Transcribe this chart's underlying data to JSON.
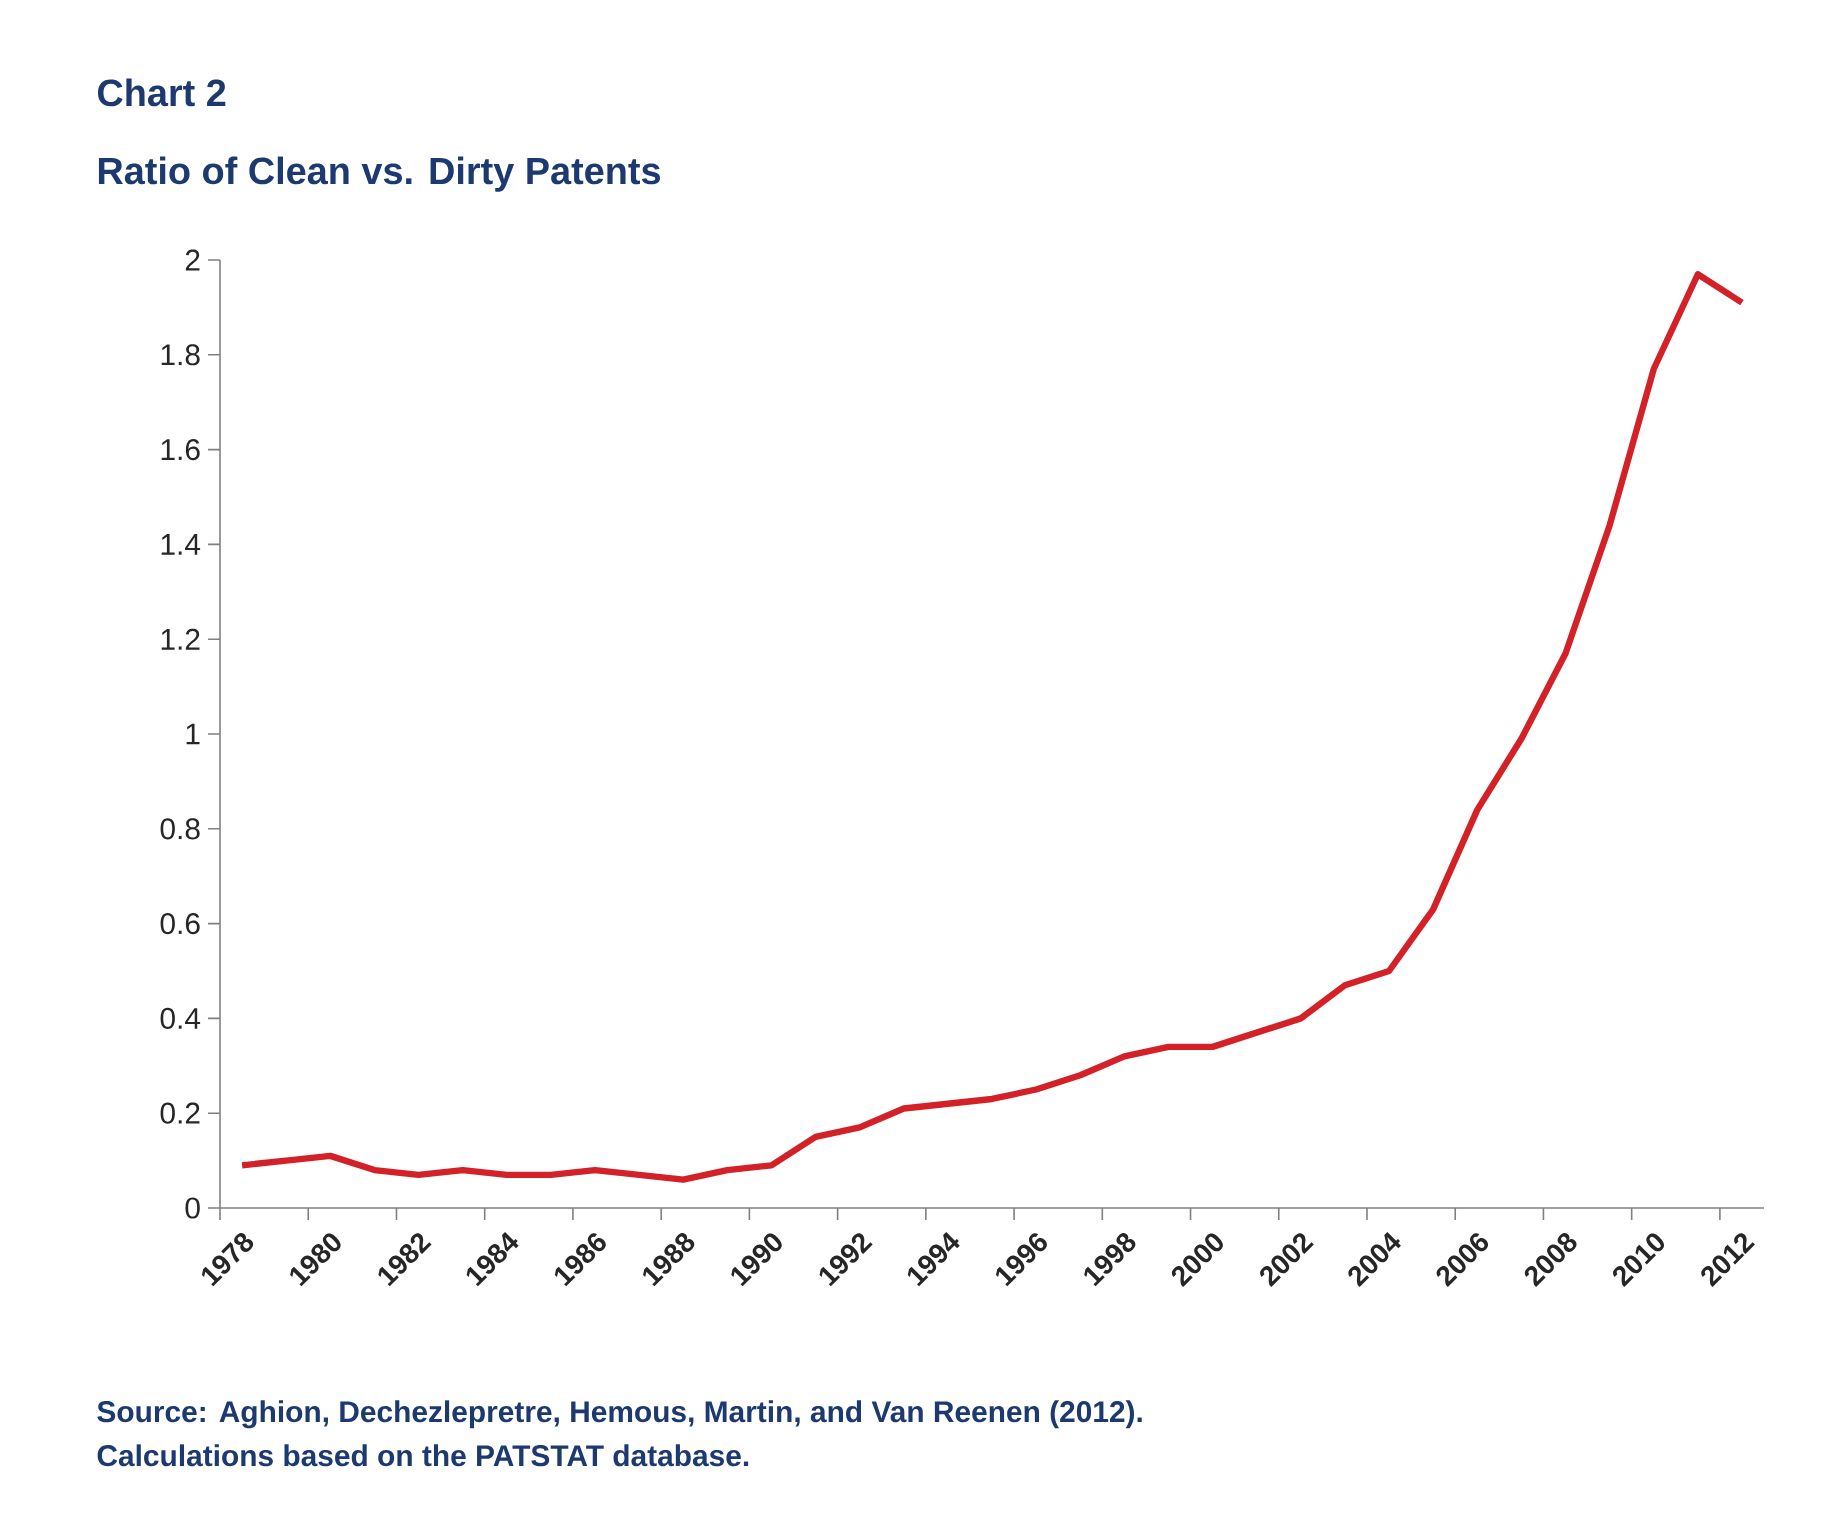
{
  "chart_data": {
    "type": "line",
    "title": "Chart 2",
    "subtitle": "Ratio of Clean vs. Dirty Patents",
    "categories": [
      "1978",
      null,
      "1980",
      null,
      "1982",
      null,
      "1984",
      null,
      "1986",
      null,
      "1988",
      null,
      "1990",
      null,
      "1992",
      null,
      "1994",
      null,
      "1996",
      null,
      "1998",
      null,
      "2000",
      null,
      "2002",
      null,
      "2004",
      null,
      "2006",
      null,
      "2008",
      null,
      "2010",
      null,
      "2012"
    ],
    "series": [
      {
        "color": "#d42027",
        "values": [
          0.09,
          0.1,
          0.11,
          0.08,
          0.07,
          0.08,
          0.07,
          0.07,
          0.08,
          0.07,
          0.06,
          0.08,
          0.09,
          0.15,
          0.17,
          0.21,
          0.22,
          0.23,
          0.25,
          0.28,
          0.32,
          0.34,
          0.34,
          0.37,
          0.4,
          0.47,
          0.5,
          0.63,
          0.84,
          0.99,
          1.17,
          1.44,
          1.77,
          1.97,
          1.91
        ]
      }
    ],
    "ylim": [
      0,
      2
    ],
    "yticks": [
      0,
      0.2,
      0.4,
      0.6,
      0.8,
      1,
      1.2,
      1.4,
      1.6,
      1.8,
      2
    ],
    "grid": false,
    "marker": "none",
    "line_style": "solid",
    "annotations": [
      "Source:  Aghion, Dechezlepretre, Hemous, Martin, and Van Reenen (2012).",
      "Calculations based on the PATSTAT database."
    ]
  }
}
